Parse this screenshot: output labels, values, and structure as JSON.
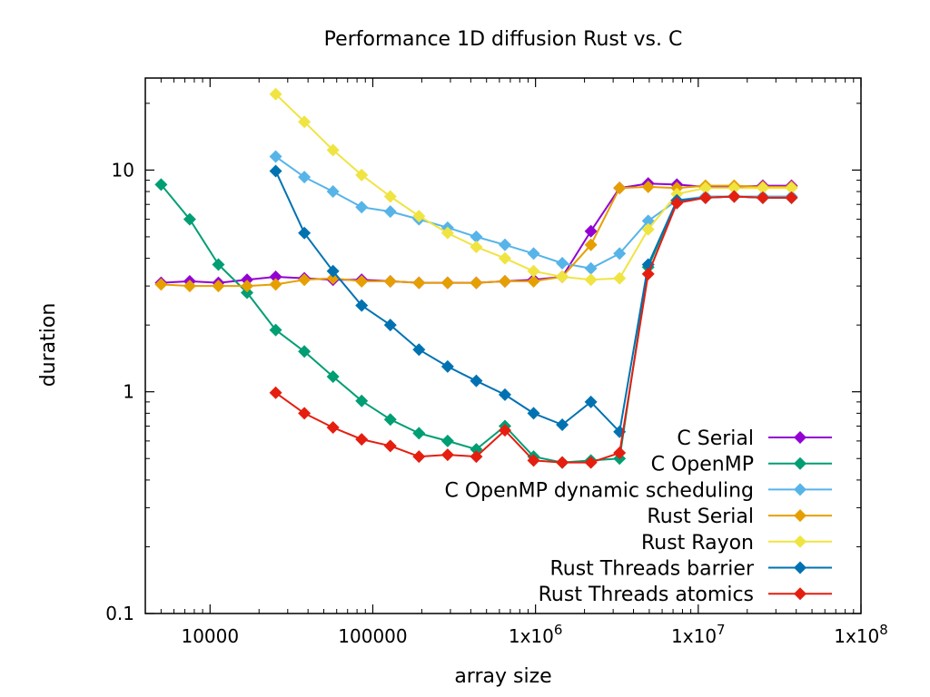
{
  "chart_data": {
    "type": "line",
    "title": "Performance 1D diffusion Rust vs. C",
    "xlabel": "array size",
    "ylabel": "duration",
    "x_scale": "log",
    "y_scale": "log",
    "xlim": [
      4000,
      100000000
    ],
    "ylim": [
      0.1,
      26
    ],
    "grid": false,
    "legend_position": "bottom-right",
    "x_ticks": [
      {
        "value": 10000,
        "label": "10000"
      },
      {
        "value": 100000,
        "label": "100000"
      },
      {
        "value": 1000000,
        "label": "1x10^6"
      },
      {
        "value": 10000000,
        "label": "1x10^7"
      },
      {
        "value": 100000000,
        "label": "1x10^8"
      }
    ],
    "y_ticks": [
      {
        "value": 0.1,
        "label": "0.1"
      },
      {
        "value": 1,
        "label": "1"
      },
      {
        "value": 10,
        "label": "10"
      }
    ],
    "series": [
      {
        "name": "C Serial",
        "color": "#9400d3",
        "x": [
          5000,
          7500,
          11250,
          16875,
          25313,
          37969,
          56953,
          85430,
          128145,
          192217,
          288325,
          432488,
          648732,
          973098,
          1459647,
          2189471,
          3284206,
          4926309,
          7389464,
          11084196,
          16626294,
          24939441,
          37409162
        ],
        "y": [
          3.1,
          3.15,
          3.1,
          3.2,
          3.3,
          3.25,
          3.2,
          3.2,
          3.15,
          3.1,
          3.1,
          3.1,
          3.15,
          3.2,
          3.3,
          5.3,
          8.3,
          8.7,
          8.6,
          8.4,
          8.4,
          8.5,
          8.5
        ]
      },
      {
        "name": "C OpenMP",
        "color": "#009e73",
        "x": [
          5000,
          7500,
          11250,
          16875,
          25313,
          37969,
          56953,
          85430,
          128145,
          192217,
          288325,
          432488,
          648732,
          973098,
          1459647,
          2189471,
          3284206,
          4926309,
          7389464,
          11084196,
          16626294,
          24939441,
          37409162
        ],
        "y": [
          8.6,
          6.0,
          3.75,
          2.8,
          1.9,
          1.52,
          1.17,
          0.91,
          0.75,
          0.65,
          0.6,
          0.55,
          0.7,
          0.51,
          0.48,
          0.49,
          0.5,
          3.65,
          7.2,
          7.5,
          7.6,
          7.5,
          7.5
        ]
      },
      {
        "name": "C OpenMP dynamic scheduling",
        "color": "#56b4e9",
        "x": [
          25313,
          37969,
          56953,
          85430,
          128145,
          192217,
          288325,
          432488,
          648732,
          973098,
          1459647,
          2189471,
          3284206,
          4926309,
          7389464,
          11084196,
          16626294,
          24939441,
          37409162
        ],
        "y": [
          11.5,
          9.3,
          8.0,
          6.8,
          6.5,
          6.0,
          5.5,
          5.0,
          4.6,
          4.2,
          3.8,
          3.6,
          4.2,
          5.9,
          7.3,
          7.6,
          7.6,
          7.6,
          7.6
        ]
      },
      {
        "name": "Rust Serial",
        "color": "#e69f00",
        "x": [
          5000,
          7500,
          11250,
          16875,
          25313,
          37969,
          56953,
          85430,
          128145,
          192217,
          288325,
          432488,
          648732,
          973098,
          1459647,
          2189471,
          3284206,
          4926309,
          7389464,
          11084196,
          16626294,
          24939441,
          37409162
        ],
        "y": [
          3.05,
          3.0,
          3.0,
          3.0,
          3.05,
          3.2,
          3.25,
          3.15,
          3.15,
          3.1,
          3.1,
          3.1,
          3.15,
          3.15,
          3.3,
          4.6,
          8.3,
          8.4,
          8.3,
          8.5,
          8.5,
          8.4,
          8.4
        ]
      },
      {
        "name": "Rust Rayon",
        "color": "#f0e442",
        "x": [
          25313,
          37969,
          56953,
          85430,
          128145,
          192217,
          288325,
          432488,
          648732,
          973098,
          1459647,
          2189471,
          3284206,
          4926309,
          7389464,
          11084196,
          16626294,
          24939441,
          37409162
        ],
        "y": [
          22.0,
          16.5,
          12.3,
          9.5,
          7.6,
          6.2,
          5.2,
          4.5,
          4.0,
          3.5,
          3.3,
          3.2,
          3.25,
          5.4,
          7.8,
          8.3,
          8.3,
          8.3,
          8.3
        ]
      },
      {
        "name": "Rust Threads barrier",
        "color": "#0072b2",
        "x": [
          25313,
          37969,
          56953,
          85430,
          128145,
          192217,
          288325,
          432488,
          648732,
          973098,
          1459647,
          2189471,
          3284206,
          4926309,
          7389464,
          11084196,
          16626294,
          24939441,
          37409162
        ],
        "y": [
          9.9,
          5.2,
          3.5,
          2.45,
          2.0,
          1.55,
          1.3,
          1.12,
          0.97,
          0.8,
          0.71,
          0.9,
          0.66,
          3.75,
          7.3,
          7.5,
          7.6,
          7.5,
          7.5
        ]
      },
      {
        "name": "Rust Threads atomics",
        "color": "#e51e10",
        "x": [
          25313,
          37969,
          56953,
          85430,
          128145,
          192217,
          288325,
          432488,
          648732,
          973098,
          1459647,
          2189471,
          3284206,
          4926309,
          7389464,
          11084196,
          16626294,
          24939441,
          37409162
        ],
        "y": [
          0.99,
          0.8,
          0.69,
          0.61,
          0.57,
          0.51,
          0.52,
          0.51,
          0.67,
          0.49,
          0.48,
          0.48,
          0.53,
          3.4,
          7.1,
          7.5,
          7.6,
          7.5,
          7.5
        ]
      }
    ]
  }
}
